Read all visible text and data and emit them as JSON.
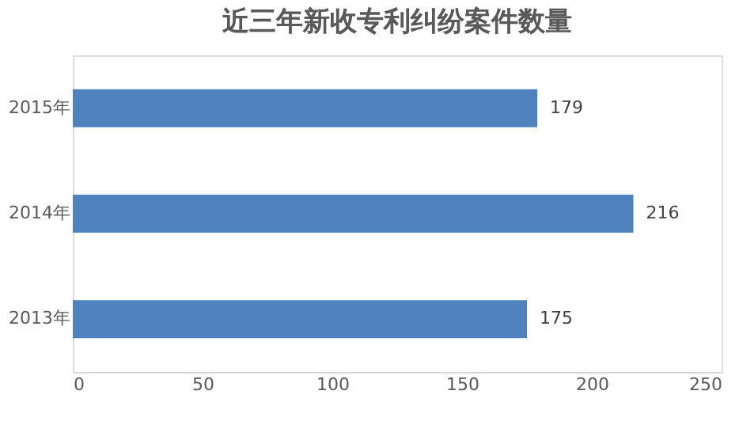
{
  "chart_data": {
    "type": "bar",
    "orientation": "horizontal",
    "title": "近三年新收专利纠纷案件数量",
    "categories": [
      "2015年",
      "2014年",
      "2013年"
    ],
    "values": [
      179,
      216,
      175
    ],
    "color": "#4f81bd",
    "xlim": [
      0,
      250
    ],
    "xticks": [
      0,
      50,
      100,
      150,
      200,
      250
    ],
    "grid": false,
    "data_labels": true
  }
}
